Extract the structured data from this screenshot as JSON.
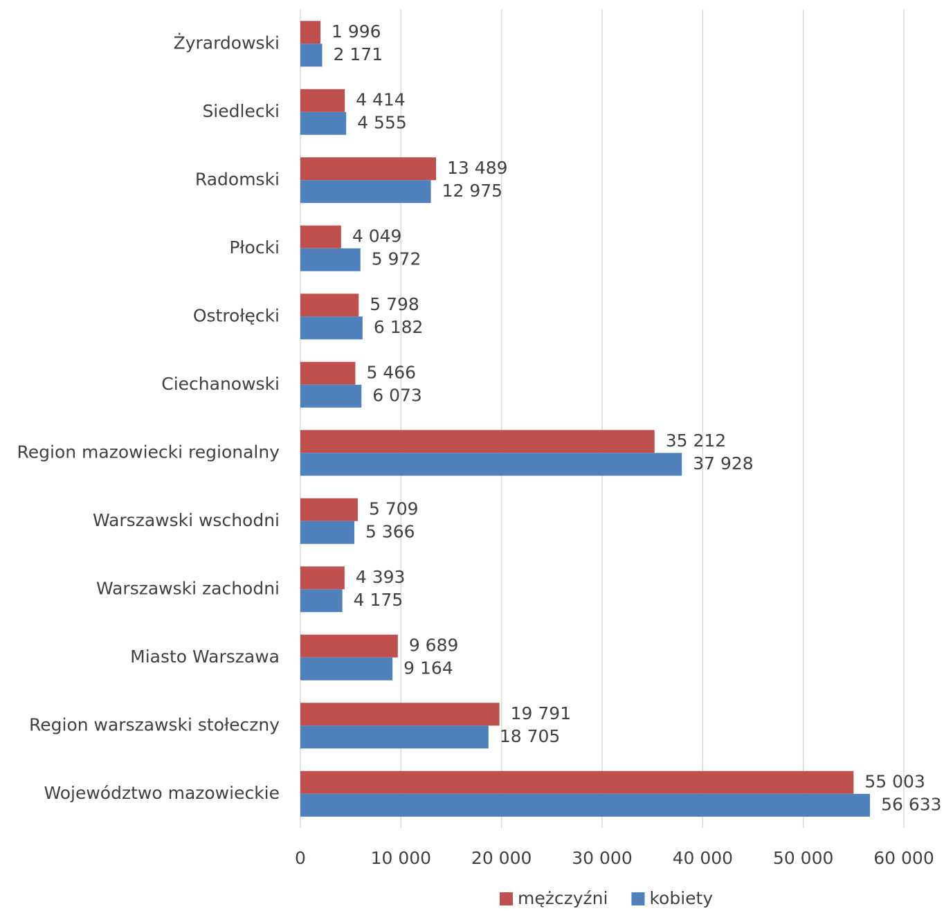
{
  "chart_data": {
    "type": "bar",
    "orientation": "horizontal",
    "categories": [
      "Żyrardowski",
      "Siedlecki",
      "Radomski",
      "Płocki",
      "Ostrołęcki",
      "Ciechanowski",
      "Region mazowiecki regionalny",
      "Warszawski wschodni",
      "Warszawski zachodni",
      "Miasto Warszawa",
      "Region warszawski stołeczny",
      "Województwo mazowieckie"
    ],
    "series": [
      {
        "name": "mężczyźni",
        "color": "#c0504d",
        "values": [
          1996,
          4414,
          13489,
          4049,
          5798,
          5466,
          35212,
          5709,
          4393,
          9689,
          19791,
          55003
        ],
        "value_labels": [
          "1 996",
          "4 414",
          "13 489",
          "4 049",
          "5 798",
          "5 466",
          "35 212",
          "5 709",
          "4 393",
          "9 689",
          "19 791",
          "55 003"
        ]
      },
      {
        "name": "kobiety",
        "color": "#4f81bd",
        "values": [
          2171,
          4555,
          12975,
          5972,
          6182,
          6073,
          37928,
          5366,
          4175,
          9164,
          18705,
          56633
        ],
        "value_labels": [
          "2 171",
          "4 555",
          "12 975",
          "5 972",
          "6 182",
          "6 073",
          "37 928",
          "5 366",
          "4 175",
          "9 164",
          "18 705",
          "56 633"
        ]
      }
    ],
    "xlim": [
      0,
      60000
    ],
    "xticks": [
      0,
      {
        "value": 10000,
        "label": "10 000"
      },
      {
        "value": 20000,
        "label": "20 000"
      },
      {
        "value": 30000,
        "label": "30 000"
      },
      {
        "value": 40000,
        "label": "40 000"
      },
      {
        "value": 50000,
        "label": "50 000"
      },
      {
        "value": 60000,
        "label": "60 000"
      }
    ],
    "grid": true,
    "legend": "bottom"
  }
}
